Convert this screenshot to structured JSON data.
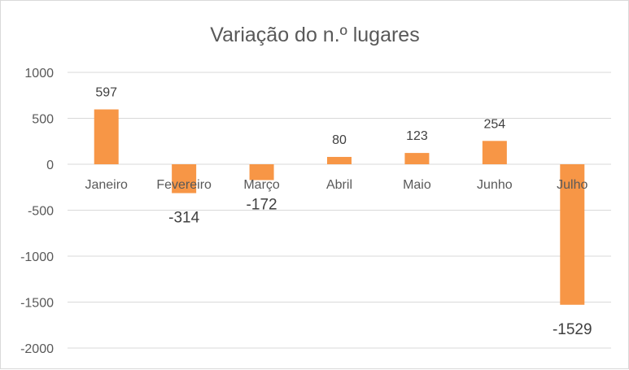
{
  "chart_data": {
    "type": "bar",
    "title": "Variação do n.º lugares",
    "categories": [
      "Janeiro",
      "Fevereiro",
      "Março",
      "Abril",
      "Maio",
      "Junho",
      "Julho"
    ],
    "values": [
      597,
      -314,
      -172,
      80,
      123,
      254,
      -1529
    ],
    "data_labels": [
      "597",
      "-314",
      "-172",
      "80",
      "123",
      "254",
      "-1529"
    ],
    "yticks": [
      1000,
      500,
      0,
      -500,
      -1000,
      -1500,
      -2000
    ],
    "ytick_labels": [
      "1000",
      "500",
      "0",
      "-500",
      "-1000",
      "-1500",
      "-2000"
    ],
    "ylim": [
      -2000,
      1000
    ],
    "grid": true,
    "legend": "none",
    "colors": {
      "bar": "#f79646",
      "grid": "#d9d9d9",
      "text": "#595959"
    }
  }
}
